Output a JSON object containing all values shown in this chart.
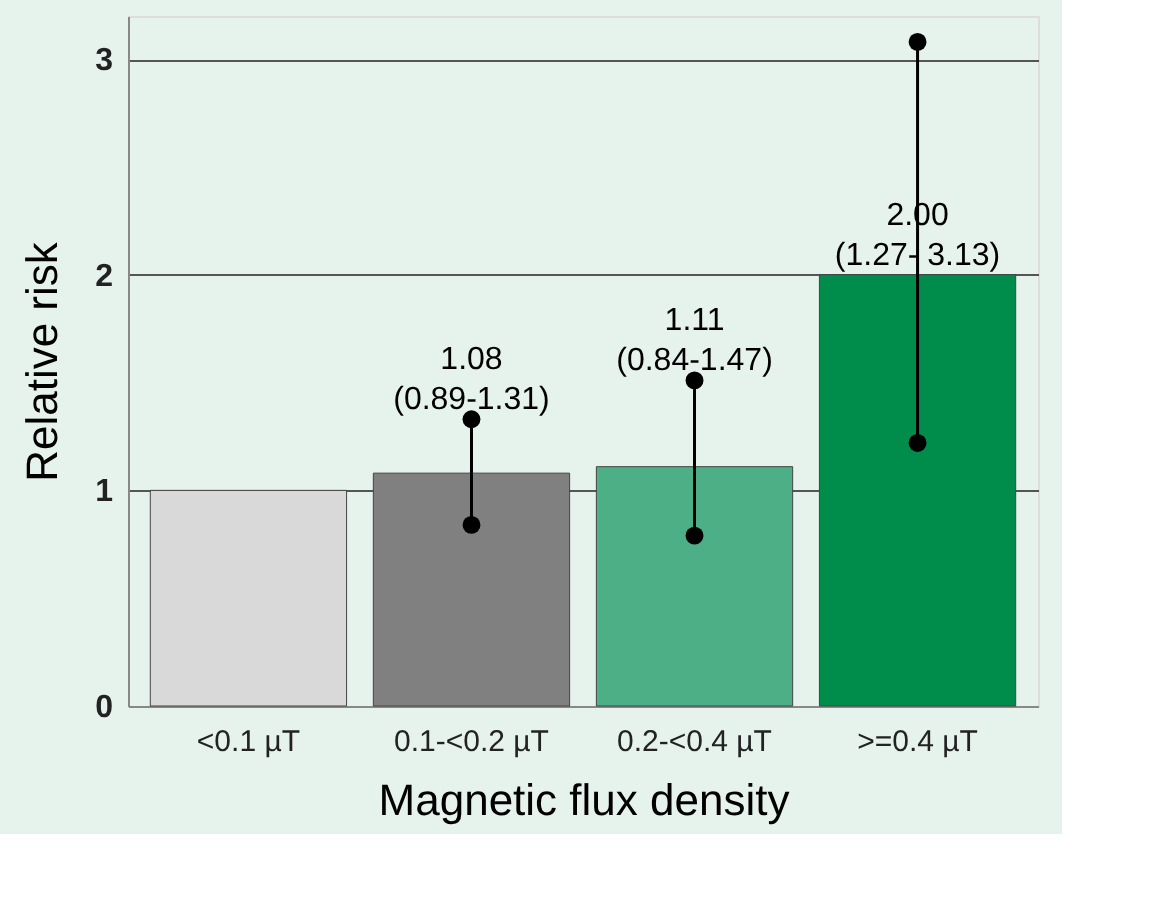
{
  "chart_data": {
    "type": "bar",
    "xlabel": "Magnetic flux density",
    "ylabel": "Relative risk",
    "categories": [
      "<0.1 µT",
      "0.1-<0.2 µT",
      "0.2-<0.4 µT",
      ">=0.4 µT"
    ],
    "values": [
      1.0,
      1.08,
      1.11,
      2.0
    ],
    "colors": [
      "#d9d9d9",
      "#808080",
      "#4daf86",
      "#008c4a"
    ],
    "errors": [
      null,
      [
        0.84,
        1.33
      ],
      [
        0.79,
        1.51
      ],
      [
        1.22,
        3.08
      ]
    ],
    "value_labels": [
      null,
      "1.08\n(0.89-1.31)",
      "1.11\n(0.84-1.47)",
      "2.00\n(1.27- 3.13)"
    ],
    "ylim": [
      0,
      3.2
    ],
    "yticks": [
      {
        "value": 0,
        "label": "0"
      },
      {
        "value": 1,
        "label": "1"
      },
      {
        "value": 2,
        "label": "2"
      },
      {
        "value": 3,
        "label": "3"
      }
    ],
    "grid": "y",
    "marker": "circle"
  }
}
